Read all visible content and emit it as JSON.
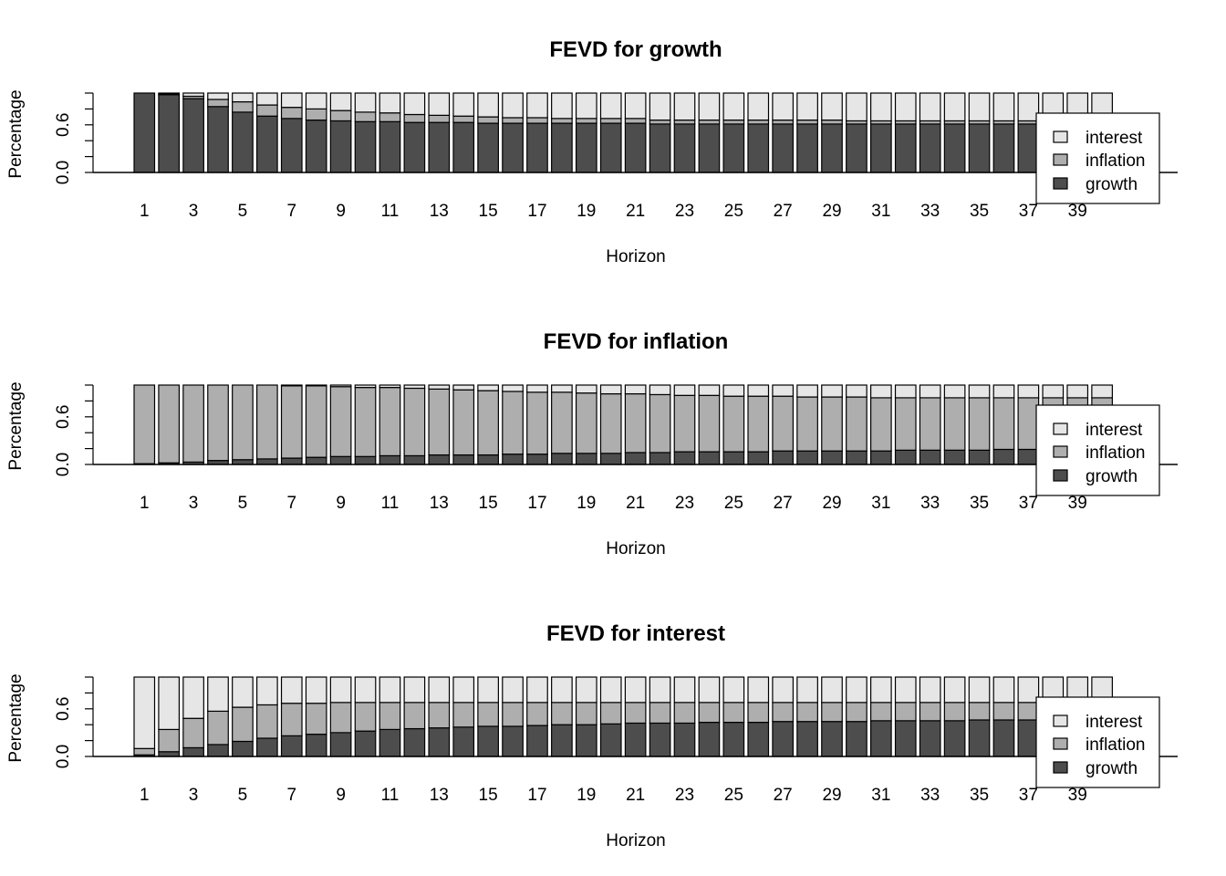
{
  "colors": {
    "growth": "#4d4d4d",
    "inflation": "#aeaeae",
    "interest": "#e6e6e6",
    "stroke": "#000000"
  },
  "chart_data": [
    {
      "type": "bar",
      "stacked": true,
      "title": "FEVD for growth",
      "xlabel": "Horizon",
      "ylabel": "Percentage",
      "ylim": [
        0,
        1
      ],
      "yticks": [
        "0.0",
        "0.6"
      ],
      "xtick_labels": [
        "1",
        "3",
        "5",
        "7",
        "9",
        "11",
        "13",
        "15",
        "17",
        "19",
        "21",
        "23",
        "25",
        "27",
        "29",
        "31",
        "33",
        "35",
        "37",
        "39"
      ],
      "legend": {
        "position": "right",
        "entries": [
          "interest",
          "inflation",
          "growth"
        ]
      },
      "series": [
        {
          "name": "growth",
          "values": [
            1.0,
            0.98,
            0.93,
            0.83,
            0.76,
            0.71,
            0.68,
            0.66,
            0.65,
            0.64,
            0.64,
            0.63,
            0.63,
            0.63,
            0.62,
            0.62,
            0.62,
            0.62,
            0.62,
            0.62,
            0.62,
            0.61,
            0.61,
            0.61,
            0.61,
            0.61,
            0.61,
            0.61,
            0.61,
            0.61,
            0.61,
            0.61,
            0.61,
            0.61,
            0.61,
            0.61,
            0.61,
            0.61,
            0.61,
            0.61
          ]
        },
        {
          "name": "inflation",
          "values": [
            0.0,
            0.01,
            0.03,
            0.09,
            0.13,
            0.14,
            0.14,
            0.14,
            0.13,
            0.12,
            0.11,
            0.1,
            0.09,
            0.08,
            0.08,
            0.07,
            0.07,
            0.06,
            0.06,
            0.06,
            0.06,
            0.05,
            0.05,
            0.05,
            0.05,
            0.05,
            0.05,
            0.05,
            0.05,
            0.04,
            0.04,
            0.04,
            0.04,
            0.04,
            0.04,
            0.04,
            0.04,
            0.04,
            0.04,
            0.04
          ]
        },
        {
          "name": "interest",
          "values": [
            0.0,
            0.01,
            0.04,
            0.08,
            0.11,
            0.15,
            0.18,
            0.2,
            0.22,
            0.24,
            0.25,
            0.27,
            0.28,
            0.29,
            0.3,
            0.31,
            0.31,
            0.32,
            0.32,
            0.32,
            0.32,
            0.34,
            0.34,
            0.34,
            0.34,
            0.34,
            0.34,
            0.34,
            0.34,
            0.35,
            0.35,
            0.35,
            0.35,
            0.35,
            0.35,
            0.35,
            0.35,
            0.35,
            0.35,
            0.35
          ]
        }
      ]
    },
    {
      "type": "bar",
      "stacked": true,
      "title": "FEVD for inflation",
      "xlabel": "Horizon",
      "ylabel": "Percentage",
      "ylim": [
        0,
        1
      ],
      "yticks": [
        "0.0",
        "0.6"
      ],
      "xtick_labels": [
        "1",
        "3",
        "5",
        "7",
        "9",
        "11",
        "13",
        "15",
        "17",
        "19",
        "21",
        "23",
        "25",
        "27",
        "29",
        "31",
        "33",
        "35",
        "37",
        "39"
      ],
      "legend": {
        "position": "right",
        "entries": [
          "interest",
          "inflation",
          "growth"
        ]
      },
      "series": [
        {
          "name": "growth",
          "values": [
            0.01,
            0.02,
            0.03,
            0.05,
            0.06,
            0.07,
            0.08,
            0.09,
            0.1,
            0.1,
            0.11,
            0.11,
            0.12,
            0.12,
            0.12,
            0.13,
            0.13,
            0.14,
            0.14,
            0.14,
            0.15,
            0.15,
            0.16,
            0.16,
            0.16,
            0.16,
            0.17,
            0.17,
            0.17,
            0.17,
            0.17,
            0.18,
            0.18,
            0.18,
            0.18,
            0.19,
            0.19,
            0.19,
            0.19,
            0.19
          ]
        },
        {
          "name": "inflation",
          "values": [
            0.99,
            0.98,
            0.97,
            0.95,
            0.94,
            0.93,
            0.91,
            0.9,
            0.88,
            0.87,
            0.86,
            0.85,
            0.83,
            0.82,
            0.81,
            0.79,
            0.78,
            0.77,
            0.76,
            0.75,
            0.74,
            0.73,
            0.71,
            0.71,
            0.7,
            0.7,
            0.69,
            0.68,
            0.68,
            0.68,
            0.67,
            0.66,
            0.66,
            0.66,
            0.66,
            0.65,
            0.65,
            0.65,
            0.65,
            0.65
          ]
        },
        {
          "name": "interest",
          "values": [
            0.0,
            0.0,
            0.0,
            0.0,
            0.0,
            0.0,
            0.01,
            0.01,
            0.02,
            0.03,
            0.03,
            0.04,
            0.05,
            0.06,
            0.07,
            0.08,
            0.09,
            0.09,
            0.1,
            0.11,
            0.11,
            0.12,
            0.13,
            0.13,
            0.14,
            0.14,
            0.14,
            0.15,
            0.15,
            0.15,
            0.16,
            0.16,
            0.16,
            0.16,
            0.16,
            0.16,
            0.16,
            0.16,
            0.16,
            0.16
          ]
        }
      ]
    },
    {
      "type": "bar",
      "stacked": true,
      "title": "FEVD for interest",
      "xlabel": "Horizon",
      "ylabel": "Percentage",
      "ylim": [
        0,
        1
      ],
      "yticks": [
        "0.0",
        "0.6"
      ],
      "xtick_labels": [
        "1",
        "3",
        "5",
        "7",
        "9",
        "11",
        "13",
        "15",
        "17",
        "19",
        "21",
        "23",
        "25",
        "27",
        "29",
        "31",
        "33",
        "35",
        "37",
        "39"
      ],
      "legend": {
        "position": "right",
        "entries": [
          "interest",
          "inflation",
          "growth"
        ]
      },
      "series": [
        {
          "name": "growth",
          "values": [
            0.02,
            0.06,
            0.11,
            0.15,
            0.19,
            0.23,
            0.26,
            0.28,
            0.3,
            0.32,
            0.34,
            0.35,
            0.36,
            0.37,
            0.38,
            0.38,
            0.39,
            0.4,
            0.4,
            0.41,
            0.42,
            0.42,
            0.42,
            0.43,
            0.43,
            0.43,
            0.44,
            0.44,
            0.44,
            0.44,
            0.45,
            0.45,
            0.45,
            0.45,
            0.46,
            0.46,
            0.46,
            0.46,
            0.46,
            0.46
          ]
        },
        {
          "name": "inflation",
          "values": [
            0.08,
            0.28,
            0.37,
            0.42,
            0.43,
            0.42,
            0.41,
            0.39,
            0.38,
            0.36,
            0.34,
            0.33,
            0.32,
            0.31,
            0.3,
            0.3,
            0.29,
            0.28,
            0.28,
            0.27,
            0.26,
            0.26,
            0.26,
            0.25,
            0.25,
            0.25,
            0.24,
            0.24,
            0.24,
            0.24,
            0.23,
            0.23,
            0.23,
            0.23,
            0.22,
            0.22,
            0.22,
            0.22,
            0.22,
            0.22
          ]
        },
        {
          "name": "interest",
          "values": [
            0.9,
            0.66,
            0.52,
            0.43,
            0.38,
            0.35,
            0.33,
            0.33,
            0.32,
            0.32,
            0.32,
            0.32,
            0.32,
            0.32,
            0.32,
            0.32,
            0.32,
            0.32,
            0.32,
            0.32,
            0.32,
            0.32,
            0.32,
            0.32,
            0.32,
            0.32,
            0.32,
            0.32,
            0.32,
            0.32,
            0.32,
            0.32,
            0.32,
            0.32,
            0.32,
            0.32,
            0.32,
            0.32,
            0.32,
            0.32
          ]
        }
      ]
    }
  ]
}
